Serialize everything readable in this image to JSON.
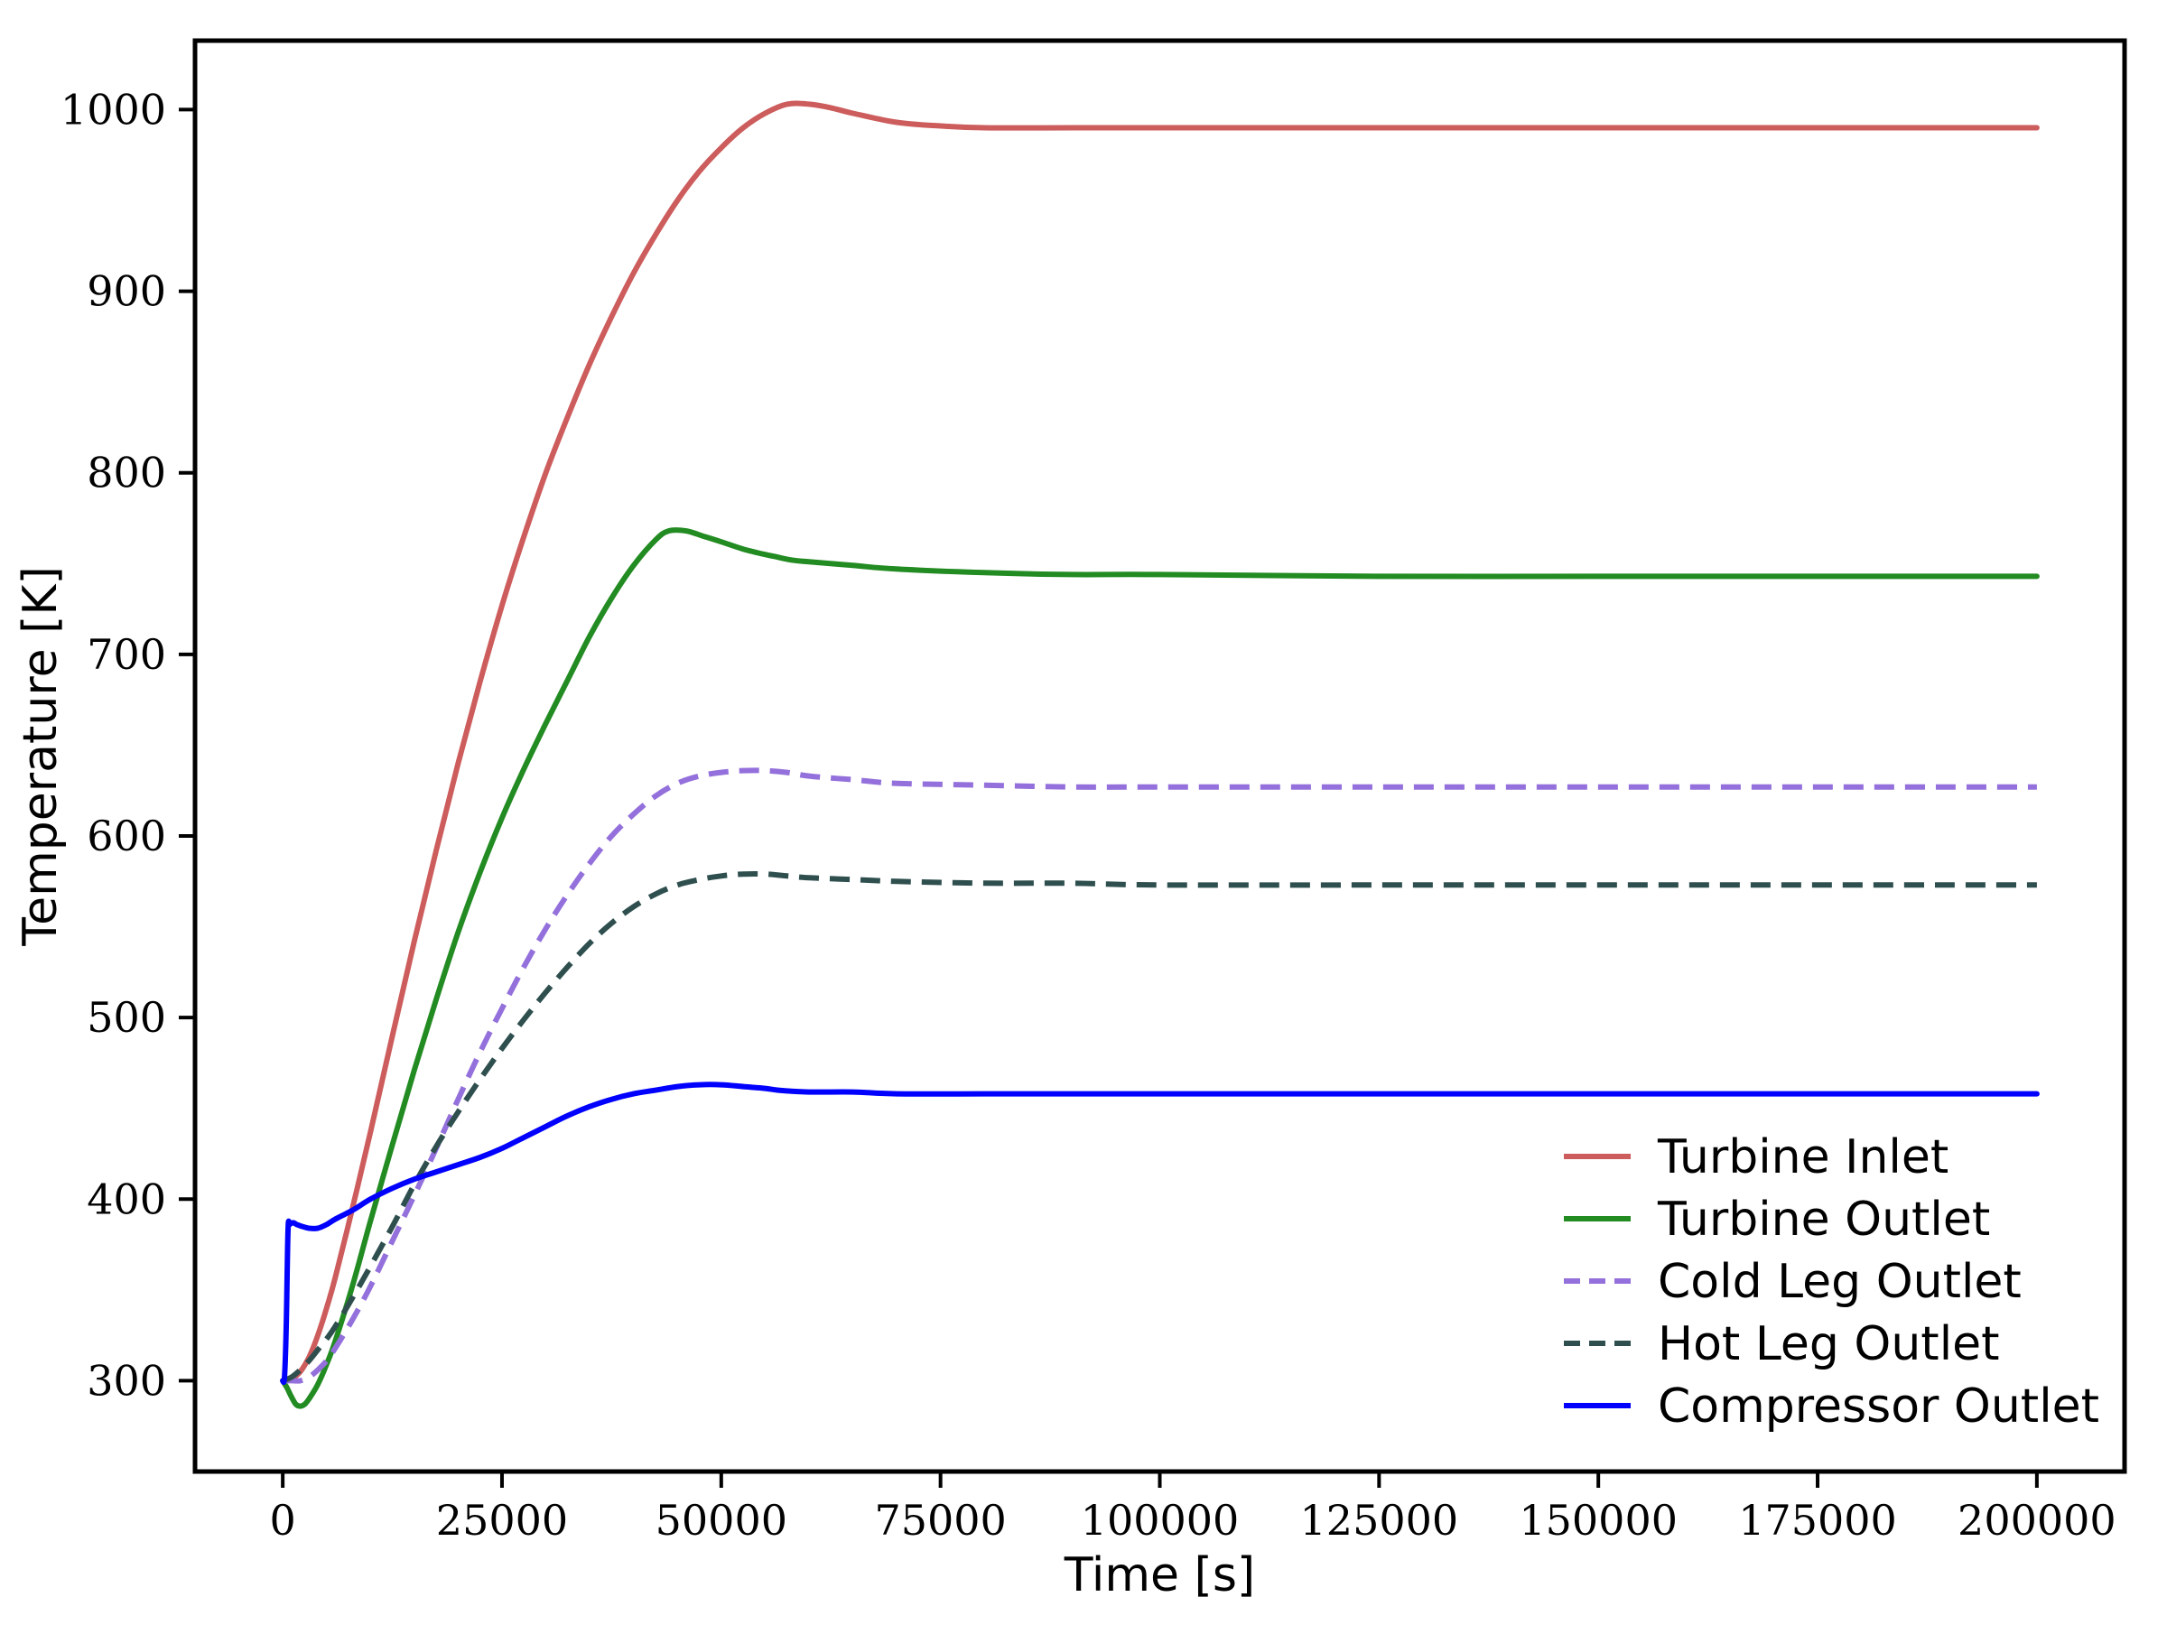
{
  "chart_data": {
    "type": "line",
    "title": "",
    "xlabel": "Time [s]",
    "ylabel": "Temperature [K]",
    "xlim": [
      -10000,
      210000
    ],
    "ylim": [
      250,
      1038
    ],
    "x_ticks": [
      0,
      25000,
      50000,
      75000,
      100000,
      125000,
      150000,
      175000,
      200000
    ],
    "y_ticks": [
      300,
      400,
      500,
      600,
      700,
      800,
      900,
      1000
    ],
    "grid": false,
    "legend_position": "lower right",
    "legend_frame": false,
    "axis_color": "#000000",
    "background_color": "#ffffff",
    "series": [
      {
        "name": "Turbine Inlet",
        "color": "#CD5C5C",
        "dashed": false,
        "points": [
          [
            0,
            300
          ],
          [
            1000,
            301
          ],
          [
            2000,
            305
          ],
          [
            3000,
            313
          ],
          [
            4000,
            325
          ],
          [
            5000,
            340
          ],
          [
            6000,
            357
          ],
          [
            8000,
            396
          ],
          [
            10000,
            437
          ],
          [
            12500,
            490
          ],
          [
            15000,
            542
          ],
          [
            17500,
            592
          ],
          [
            20000,
            640
          ],
          [
            22500,
            685
          ],
          [
            25000,
            727
          ],
          [
            27500,
            765
          ],
          [
            30000,
            800
          ],
          [
            32500,
            831
          ],
          [
            35000,
            860
          ],
          [
            37500,
            886
          ],
          [
            40000,
            910
          ],
          [
            42500,
            931
          ],
          [
            45000,
            950
          ],
          [
            47500,
            966
          ],
          [
            50000,
            979
          ],
          [
            52500,
            990
          ],
          [
            55000,
            998
          ],
          [
            57500,
            1003
          ],
          [
            60000,
            1003
          ],
          [
            62500,
            1001
          ],
          [
            65000,
            998
          ],
          [
            70000,
            993
          ],
          [
            75000,
            991
          ],
          [
            80000,
            990
          ],
          [
            90000,
            990
          ],
          [
            100000,
            990
          ],
          [
            125000,
            990
          ],
          [
            150000,
            990
          ],
          [
            175000,
            990
          ],
          [
            200000,
            990
          ]
        ]
      },
      {
        "name": "Turbine Outlet",
        "color": "#228B22",
        "dashed": false,
        "points": [
          [
            0,
            300
          ],
          [
            500,
            296
          ],
          [
            1000,
            291
          ],
          [
            1500,
            287
          ],
          [
            2000,
            286
          ],
          [
            2500,
            287
          ],
          [
            3000,
            290
          ],
          [
            4000,
            298
          ],
          [
            5000,
            309
          ],
          [
            6000,
            322
          ],
          [
            8000,
            353
          ],
          [
            10000,
            388
          ],
          [
            12500,
            430
          ],
          [
            15000,
            471
          ],
          [
            17500,
            510
          ],
          [
            20000,
            547
          ],
          [
            22500,
            580
          ],
          [
            25000,
            610
          ],
          [
            27500,
            637
          ],
          [
            30000,
            662
          ],
          [
            32500,
            686
          ],
          [
            35000,
            710
          ],
          [
            37500,
            731
          ],
          [
            40000,
            749
          ],
          [
            42500,
            763
          ],
          [
            44000,
            768
          ],
          [
            46000,
            768
          ],
          [
            48000,
            765
          ],
          [
            50000,
            762
          ],
          [
            52500,
            758
          ],
          [
            55000,
            755
          ],
          [
            56000,
            754
          ],
          [
            58000,
            752
          ],
          [
            60000,
            751
          ],
          [
            65000,
            749
          ],
          [
            70000,
            747
          ],
          [
            80000,
            745
          ],
          [
            90000,
            744
          ],
          [
            100000,
            744
          ],
          [
            125000,
            743
          ],
          [
            150000,
            743
          ],
          [
            175000,
            743
          ],
          [
            200000,
            743
          ]
        ]
      },
      {
        "name": "Cold Leg Outlet",
        "color": "#9370DB",
        "dashed": true,
        "points": [
          [
            0,
            300
          ],
          [
            1000,
            300
          ],
          [
            2000,
            300
          ],
          [
            3000,
            302
          ],
          [
            4000,
            306
          ],
          [
            5000,
            311
          ],
          [
            6000,
            318
          ],
          [
            8000,
            334
          ],
          [
            10000,
            352
          ],
          [
            12500,
            377
          ],
          [
            15000,
            402
          ],
          [
            17500,
            428
          ],
          [
            20000,
            455
          ],
          [
            22500,
            481
          ],
          [
            25000,
            505
          ],
          [
            27500,
            528
          ],
          [
            30000,
            549
          ],
          [
            32500,
            568
          ],
          [
            35000,
            585
          ],
          [
            37500,
            600
          ],
          [
            40000,
            612
          ],
          [
            42500,
            622
          ],
          [
            45000,
            629
          ],
          [
            47500,
            633
          ],
          [
            50000,
            635
          ],
          [
            52500,
            636
          ],
          [
            55000,
            636
          ],
          [
            57500,
            635
          ],
          [
            60000,
            633
          ],
          [
            65000,
            631
          ],
          [
            70000,
            629
          ],
          [
            80000,
            628
          ],
          [
            90000,
            627
          ],
          [
            100000,
            627
          ],
          [
            125000,
            627
          ],
          [
            150000,
            627
          ],
          [
            175000,
            627
          ],
          [
            200000,
            627
          ]
        ]
      },
      {
        "name": "Hot Leg Outlet",
        "color": "#2F4F4F",
        "dashed": true,
        "points": [
          [
            0,
            300
          ],
          [
            1000,
            302
          ],
          [
            2000,
            306
          ],
          [
            3000,
            311
          ],
          [
            4000,
            317
          ],
          [
            5000,
            323
          ],
          [
            6000,
            330
          ],
          [
            8000,
            346
          ],
          [
            10000,
            363
          ],
          [
            12500,
            385
          ],
          [
            15000,
            408
          ],
          [
            17500,
            429
          ],
          [
            20000,
            448
          ],
          [
            22500,
            466
          ],
          [
            25000,
            483
          ],
          [
            27500,
            499
          ],
          [
            30000,
            514
          ],
          [
            32500,
            528
          ],
          [
            35000,
            541
          ],
          [
            37500,
            552
          ],
          [
            40000,
            561
          ],
          [
            42500,
            568
          ],
          [
            45000,
            573
          ],
          [
            47500,
            576
          ],
          [
            50000,
            578
          ],
          [
            52500,
            579
          ],
          [
            55000,
            579
          ],
          [
            57500,
            578
          ],
          [
            60000,
            577
          ],
          [
            65000,
            576
          ],
          [
            70000,
            575
          ],
          [
            80000,
            574
          ],
          [
            90000,
            574
          ],
          [
            100000,
            573
          ],
          [
            125000,
            573
          ],
          [
            150000,
            573
          ],
          [
            175000,
            573
          ],
          [
            200000,
            573
          ]
        ]
      },
      {
        "name": "Compressor Outlet",
        "color": "#0000FF",
        "dashed": false,
        "points": [
          [
            0,
            300
          ],
          [
            200,
            302
          ],
          [
            400,
            330
          ],
          [
            600,
            383
          ],
          [
            800,
            386
          ],
          [
            1200,
            387
          ],
          [
            1600,
            386
          ],
          [
            2200,
            385
          ],
          [
            3000,
            384
          ],
          [
            4000,
            384
          ],
          [
            5000,
            386
          ],
          [
            6000,
            389
          ],
          [
            8000,
            394
          ],
          [
            10000,
            400
          ],
          [
            12500,
            406
          ],
          [
            15000,
            411
          ],
          [
            17500,
            415
          ],
          [
            20000,
            419
          ],
          [
            22500,
            423
          ],
          [
            25000,
            428
          ],
          [
            27500,
            434
          ],
          [
            30000,
            440
          ],
          [
            32500,
            446
          ],
          [
            35000,
            451
          ],
          [
            37500,
            455
          ],
          [
            40000,
            458
          ],
          [
            42500,
            460
          ],
          [
            45000,
            462
          ],
          [
            47500,
            463
          ],
          [
            50000,
            463
          ],
          [
            52500,
            462
          ],
          [
            55000,
            461
          ],
          [
            56500,
            460
          ],
          [
            60000,
            459
          ],
          [
            65000,
            459
          ],
          [
            70000,
            458
          ],
          [
            80000,
            458
          ],
          [
            90000,
            458
          ],
          [
            100000,
            458
          ],
          [
            125000,
            458
          ],
          [
            150000,
            458
          ],
          [
            175000,
            458
          ],
          [
            200000,
            458
          ]
        ]
      }
    ],
    "legend": {
      "entries": [
        "Turbine Inlet",
        "Turbine Outlet",
        "Cold Leg Outlet",
        "Hot Leg Outlet",
        "Compressor Outlet"
      ]
    }
  }
}
